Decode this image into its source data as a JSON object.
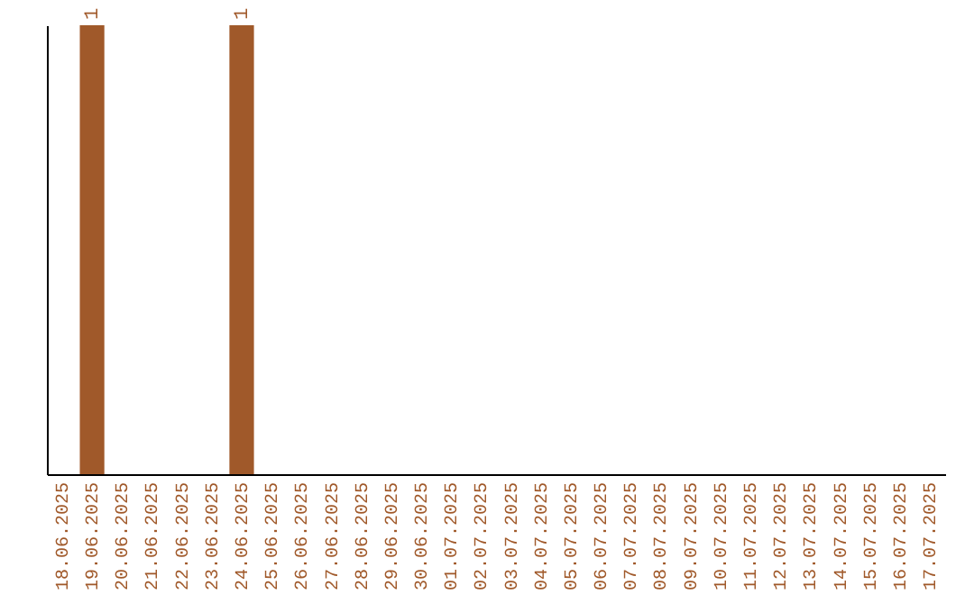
{
  "chart_data": {
    "type": "bar",
    "categories": [
      "18.06.2025",
      "19.06.2025",
      "20.06.2025",
      "21.06.2025",
      "22.06.2025",
      "23.06.2025",
      "24.06.2025",
      "25.06.2025",
      "26.06.2025",
      "27.06.2025",
      "28.06.2025",
      "29.06.2025",
      "30.06.2025",
      "01.07.2025",
      "02.07.2025",
      "03.07.2025",
      "04.07.2025",
      "05.07.2025",
      "06.07.2025",
      "07.07.2025",
      "08.07.2025",
      "09.07.2025",
      "10.07.2025",
      "11.07.2025",
      "12.07.2025",
      "13.07.2025",
      "14.07.2025",
      "15.07.2025",
      "16.07.2025",
      "17.07.2025"
    ],
    "values": [
      0,
      1,
      0,
      0,
      0,
      0,
      1,
      0,
      0,
      0,
      0,
      0,
      0,
      0,
      0,
      0,
      0,
      0,
      0,
      0,
      0,
      0,
      0,
      0,
      0,
      0,
      0,
      0,
      0,
      0
    ],
    "value_labels": [
      null,
      "1",
      null,
      null,
      null,
      null,
      "1",
      null,
      null,
      null,
      null,
      null,
      null,
      null,
      null,
      null,
      null,
      null,
      null,
      null,
      null,
      null,
      null,
      null,
      null,
      null,
      null,
      null,
      null,
      null
    ],
    "color": "#a0592a",
    "tick_labels": "x",
    "grid": false
  }
}
